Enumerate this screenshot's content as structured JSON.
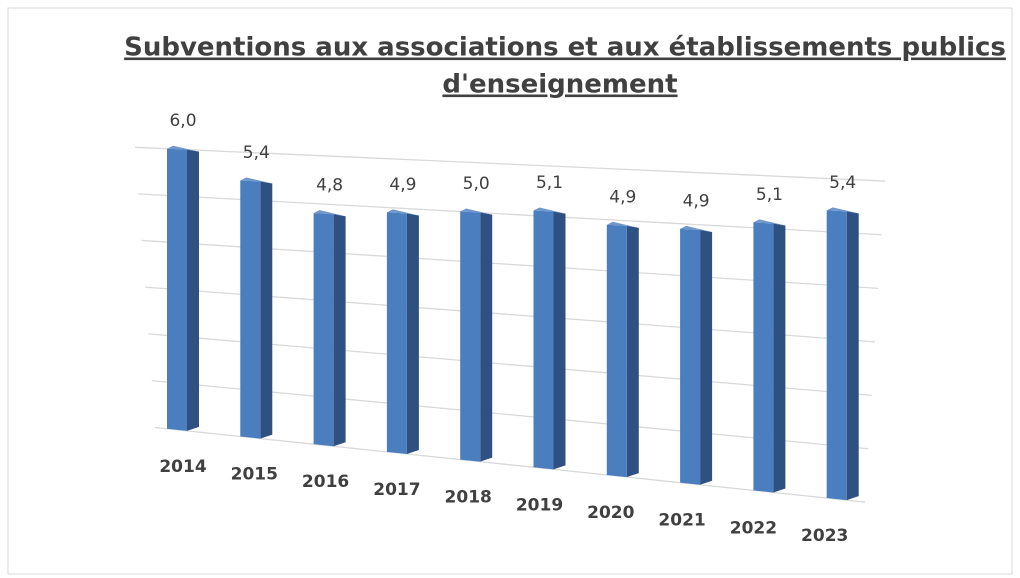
{
  "chart_data": {
    "type": "bar3d",
    "title": [
      "Subventions aux associations et aux établissements publics",
      "d'enseignement"
    ],
    "categories": [
      "2014",
      "2015",
      "2016",
      "2017",
      "2018",
      "2019",
      "2020",
      "2021",
      "2022",
      "2023"
    ],
    "values": [
      6.0,
      5.4,
      4.8,
      4.9,
      5.0,
      5.1,
      4.9,
      4.9,
      5.1,
      5.4
    ],
    "value_labels": [
      "6,0",
      "5,4",
      "4,8",
      "4,9",
      "5,0",
      "5,1",
      "4,9",
      "4,9",
      "5,1",
      "5,4"
    ],
    "color": "#4a7ebf",
    "ylim": [
      0,
      6
    ],
    "yticks": [
      0,
      1,
      2,
      3,
      4,
      5,
      6
    ],
    "grid": true
  }
}
